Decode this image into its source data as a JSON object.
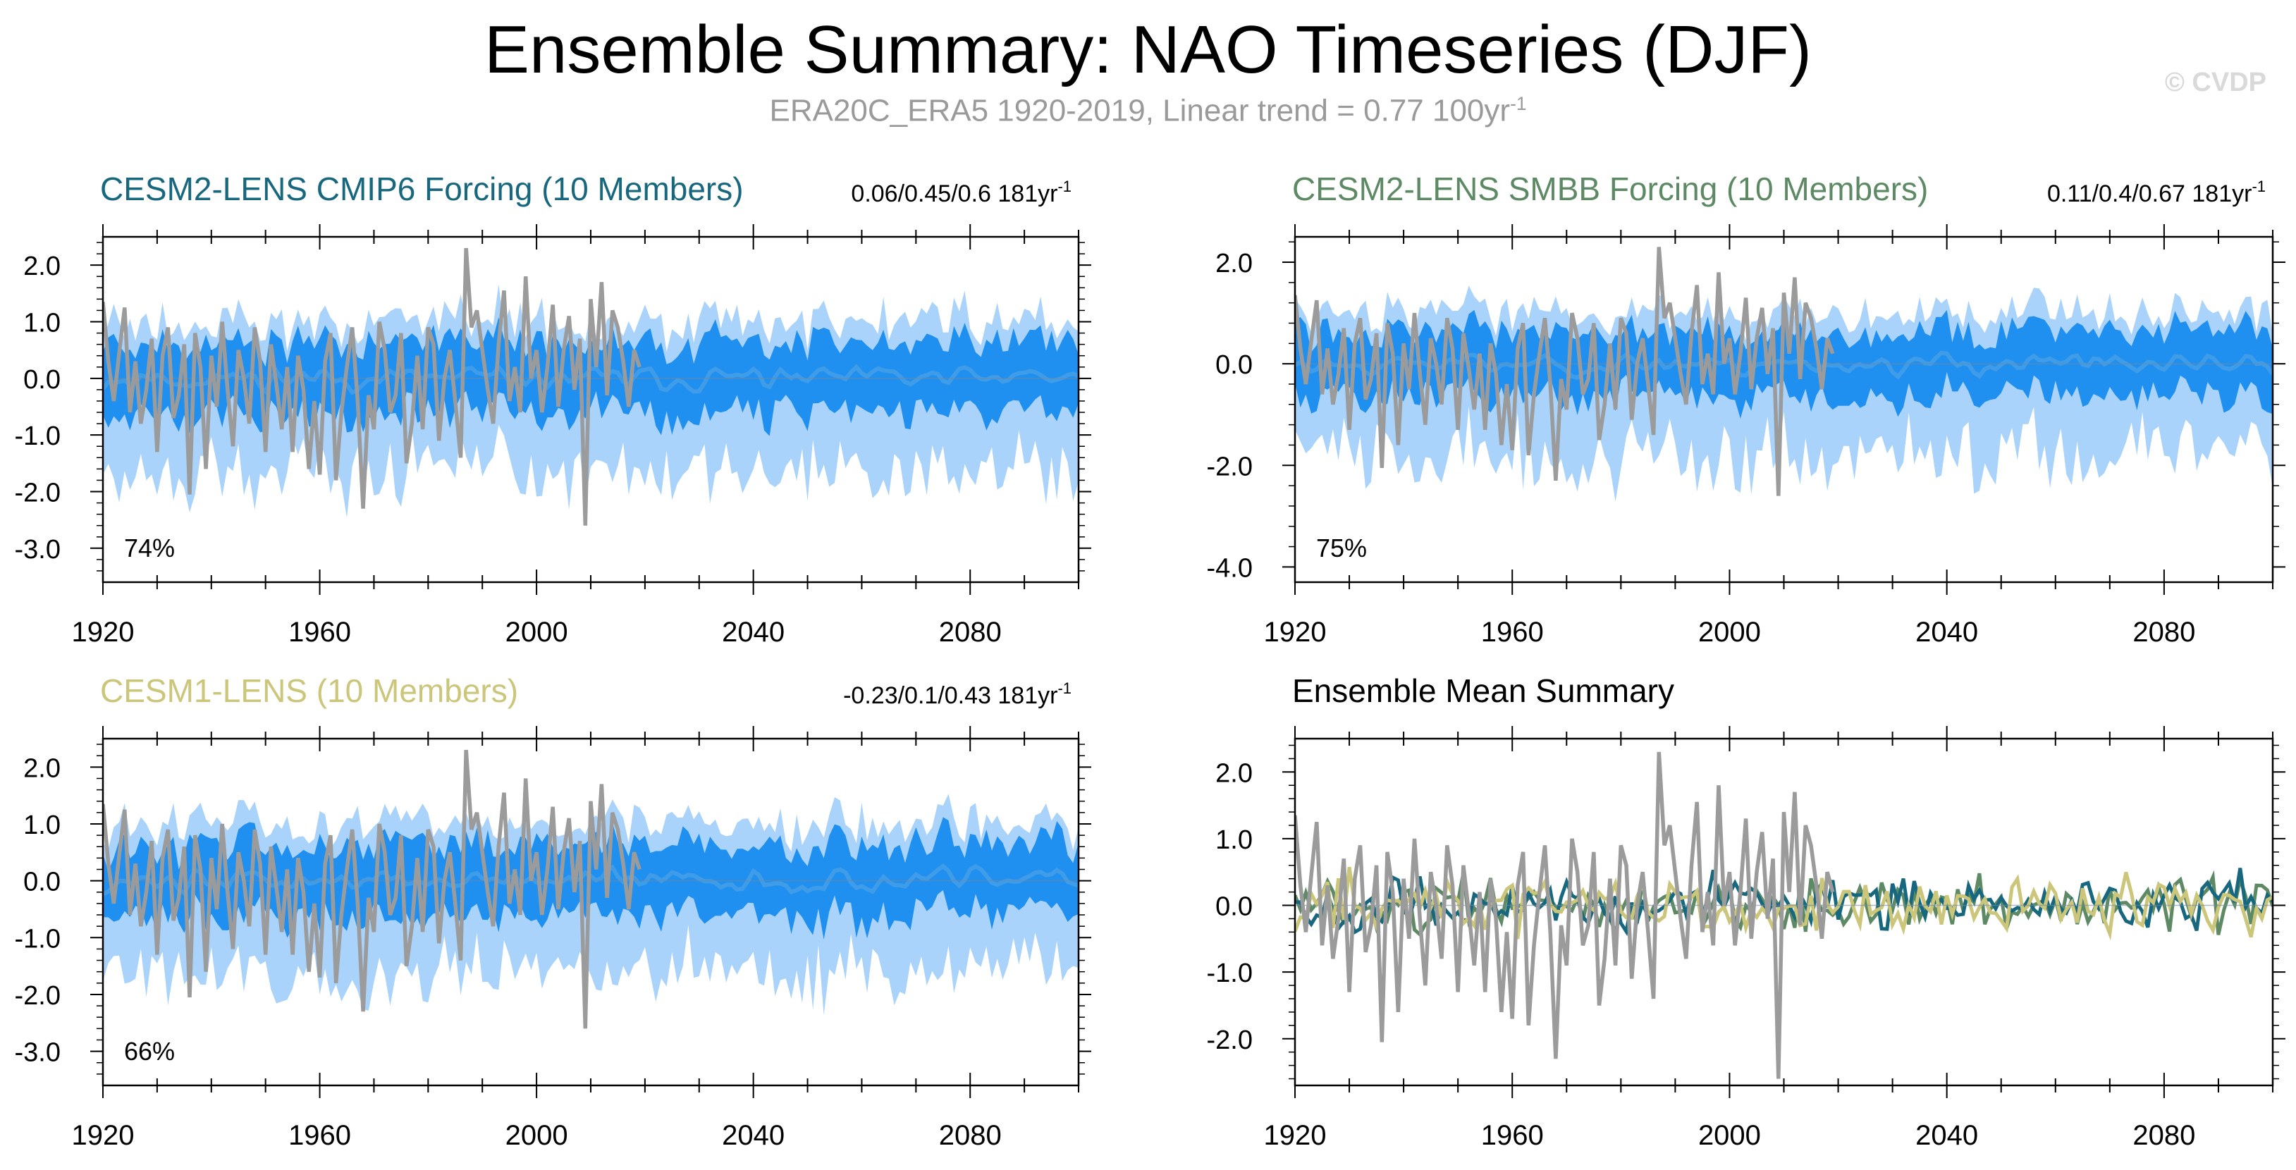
{
  "title": "Ensemble Summary: NAO Timeseries (DJF)",
  "subtitle": "ERA20C_ERA5 1920-2019, Linear trend = 0.77 100yr",
  "subtitle_sup": "-1",
  "watermark": "© CVDP",
  "colors": {
    "obs": "#9b9b9b",
    "band_outer": "#a9d3fb",
    "band_inner": "#1f8ff0",
    "ens_mean": "#3f9ce8",
    "cmip6": "#17677e",
    "smbb": "#5d8a65",
    "lens1": "#cbc67a"
  },
  "chart_data": [
    {
      "type": "line",
      "title": "CESM2-LENS CMIP6 Forcing (10 Members)",
      "title_color": "#17677e",
      "trend_label": "0.06/0.45/0.6 181yr",
      "trend_sup": "-1",
      "percent_label": "74%",
      "x_range": [
        1920,
        2100
      ],
      "x_ticks": [
        "1920",
        "1960",
        "2000",
        "2040",
        "2080"
      ],
      "ylim": [
        -3.6,
        2.5
      ],
      "y_ticks": [
        "2.0",
        "1.0",
        "0.0",
        "-1.0",
        "-2.0",
        "-3.0"
      ],
      "series": [
        "observed NAO (ERA20C_ERA5)",
        "ensemble 10-90% range",
        "ensemble 25-75% range",
        "ensemble mean"
      ],
      "seed": 11
    },
    {
      "type": "line",
      "title": "CESM2-LENS SMBB Forcing (10 Members)",
      "title_color": "#5d8a65",
      "trend_label": "0.11/0.4/0.67 181yr",
      "trend_sup": "-1",
      "percent_label": "75%",
      "x_range": [
        1920,
        2100
      ],
      "x_ticks": [
        "1920",
        "1960",
        "2000",
        "2040",
        "2080"
      ],
      "ylim": [
        -4.3,
        2.5
      ],
      "y_ticks": [
        "2.0",
        "0.0",
        "-2.0",
        "-4.0"
      ],
      "series": [
        "observed NAO (ERA20C_ERA5)",
        "ensemble 10-90% range",
        "ensemble 25-75% range",
        "ensemble mean"
      ],
      "seed": 23
    },
    {
      "type": "line",
      "title": "CESM1-LENS (10 Members)",
      "title_color": "#cbc67a",
      "trend_label": "-0.23/0.1/0.43 181yr",
      "trend_sup": "-1",
      "percent_label": "66%",
      "x_range": [
        1920,
        2100
      ],
      "x_ticks": [
        "1920",
        "1960",
        "2000",
        "2040",
        "2080"
      ],
      "ylim": [
        -3.6,
        2.5
      ],
      "y_ticks": [
        "2.0",
        "1.0",
        "0.0",
        "-1.0",
        "-2.0",
        "-3.0"
      ],
      "series": [
        "observed NAO (ERA20C_ERA5)",
        "ensemble 10-90% range",
        "ensemble 25-75% range",
        "ensemble mean"
      ],
      "seed": 37
    },
    {
      "type": "line",
      "title": "Ensemble Mean Summary",
      "title_color": "#000000",
      "trend_label": "",
      "trend_sup": "",
      "percent_label": "",
      "x_range": [
        1920,
        2100
      ],
      "x_ticks": [
        "1920",
        "1960",
        "2000",
        "2040",
        "2080"
      ],
      "ylim": [
        -2.7,
        2.5
      ],
      "y_ticks": [
        "2.0",
        "1.0",
        "0.0",
        "-1.0",
        "-2.0"
      ],
      "series": [
        "observed NAO (ERA20C_ERA5)",
        "CESM2-LENS CMIP6 ensemble mean",
        "CESM2-LENS SMBB ensemble mean",
        "CESM1-LENS ensemble mean"
      ],
      "seed": 51
    }
  ],
  "obs_nao": [
    1.35,
    0.3,
    -0.4,
    0.45,
    1.25,
    -0.6,
    0.3,
    -0.8,
    -0.2,
    0.7,
    -1.3,
    0.4,
    0.9,
    -0.7,
    -0.3,
    0.6,
    -2.05,
    0.8,
    0.2,
    -1.6,
    0.4,
    -0.5,
    1.0,
    -0.2,
    -1.2,
    0.5,
    0.0,
    -0.8,
    0.9,
    0.3,
    -1.3,
    0.6,
    -0.1,
    -0.9,
    0.2,
    -1.3,
    0.4,
    -0.2,
    -1.6,
    -0.4,
    -1.7,
    0.3,
    0.8,
    -1.8,
    -0.6,
    0.2,
    0.9,
    -0.4,
    -2.3,
    -0.3,
    -0.9,
    1.0,
    0.5,
    -0.6,
    -0.3,
    0.8,
    -1.5,
    -0.8,
    0.4,
    -0.9,
    0.9,
    0.6,
    -1.1,
    0.0,
    0.5,
    -0.4,
    -1.4,
    2.3,
    0.9,
    1.2,
    0.5,
    -0.2,
    -0.8,
    0.6,
    1.55,
    -0.4,
    0.2,
    -0.6,
    1.8,
    0.0,
    0.5,
    -0.6,
    0.2,
    1.3,
    -0.5,
    0.5,
    1.1,
    -0.2,
    0.7,
    -2.6,
    1.4,
    0.2,
    1.7,
    -0.3,
    1.2,
    0.9,
    0.3,
    -0.5,
    0.5,
    0.2
  ]
}
